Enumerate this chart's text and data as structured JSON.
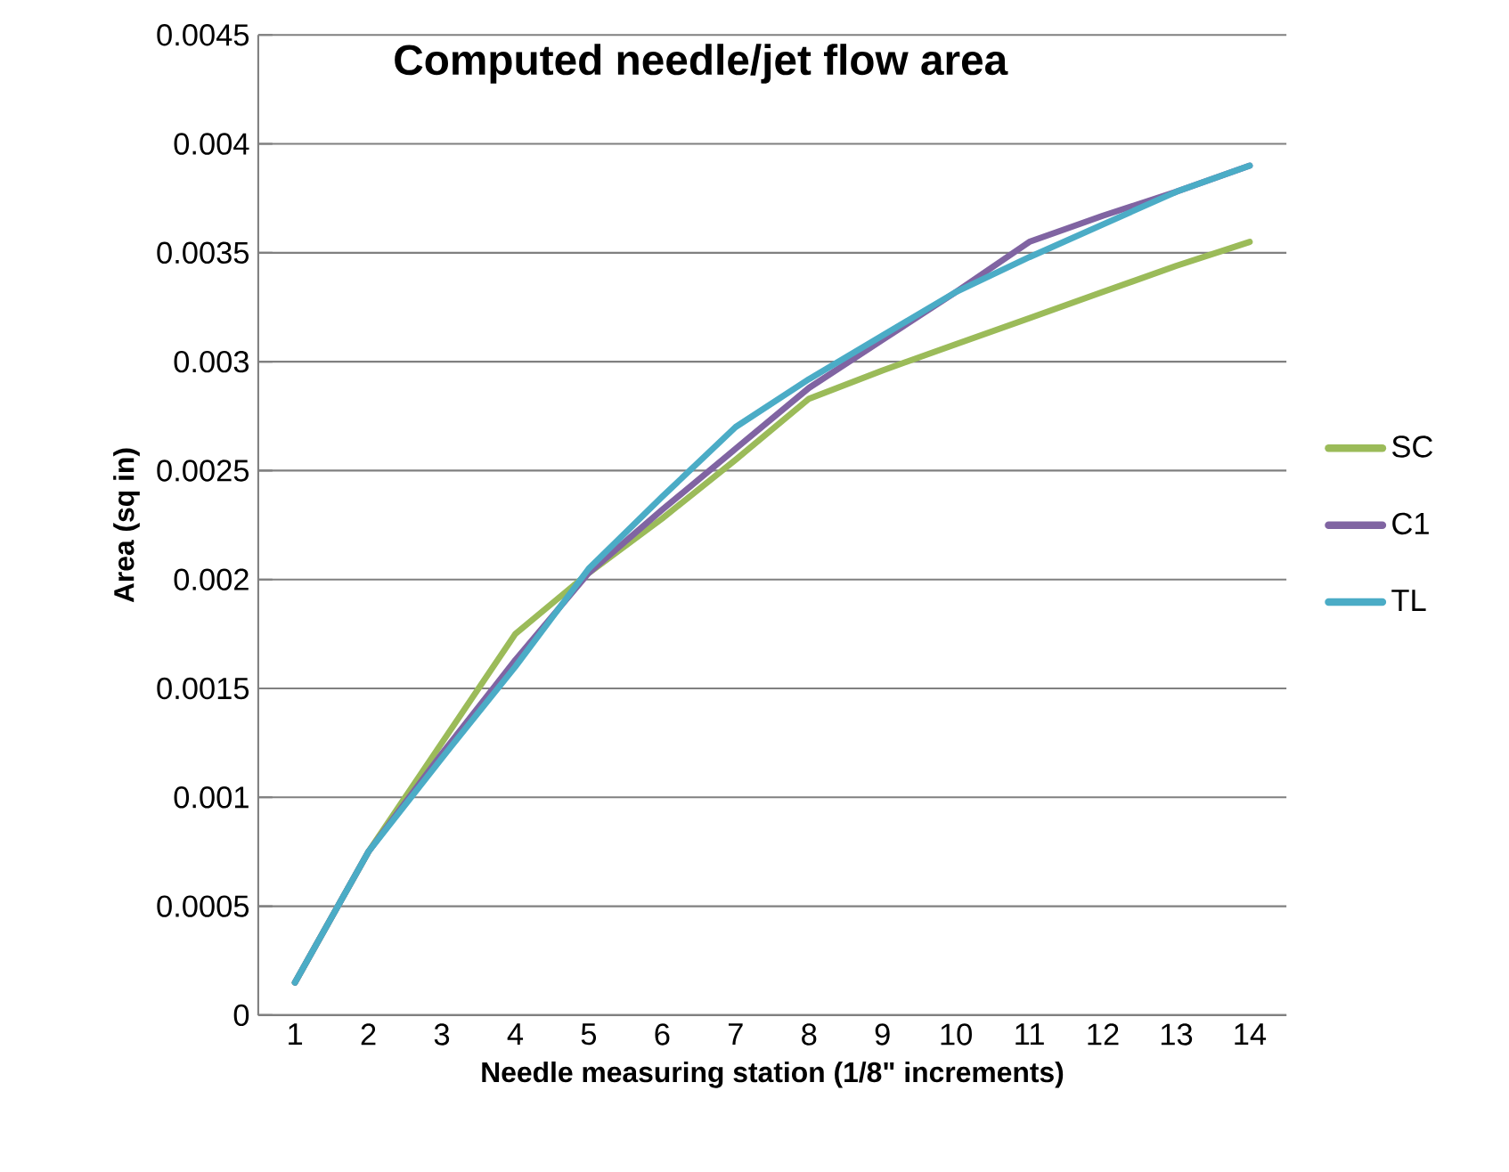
{
  "chart_data": {
    "type": "line",
    "title": "Computed needle/jet flow area",
    "xlabel": "Needle measuring station (1/8\" increments)",
    "ylabel": "Area (sq in)",
    "categories": [
      "1",
      "2",
      "3",
      "4",
      "5",
      "6",
      "7",
      "8",
      "9",
      "10",
      "11",
      "12",
      "13",
      "14"
    ],
    "series": [
      {
        "name": "SC",
        "color": "#9bbb59",
        "values": [
          0.00015,
          0.00075,
          0.00125,
          0.00175,
          0.00203,
          0.00228,
          0.00255,
          0.00283,
          0.00296,
          0.00308,
          0.0032,
          0.00332,
          0.00344,
          0.00355
        ]
      },
      {
        "name": "C1",
        "color": "#8064a2",
        "values": [
          0.00015,
          0.00075,
          0.0012,
          0.00163,
          0.00203,
          0.00232,
          0.0026,
          0.00288,
          0.0031,
          0.00332,
          0.00355,
          0.00367,
          0.00378,
          0.0039
        ]
      },
      {
        "name": "TL",
        "color": "#4bacc6",
        "values": [
          0.00015,
          0.00075,
          0.00118,
          0.0016,
          0.00205,
          0.00238,
          0.0027,
          0.00292,
          0.00312,
          0.00332,
          0.00348,
          0.00363,
          0.00378,
          0.0039
        ]
      }
    ],
    "ylim": [
      0,
      0.0045
    ],
    "yticks": [
      0,
      0.0005,
      0.001,
      0.0015,
      0.002,
      0.0025,
      0.003,
      0.0035,
      0.004,
      0.0045
    ],
    "grid": "y",
    "legend": "right",
    "marker": "none",
    "line_style": "solid"
  }
}
